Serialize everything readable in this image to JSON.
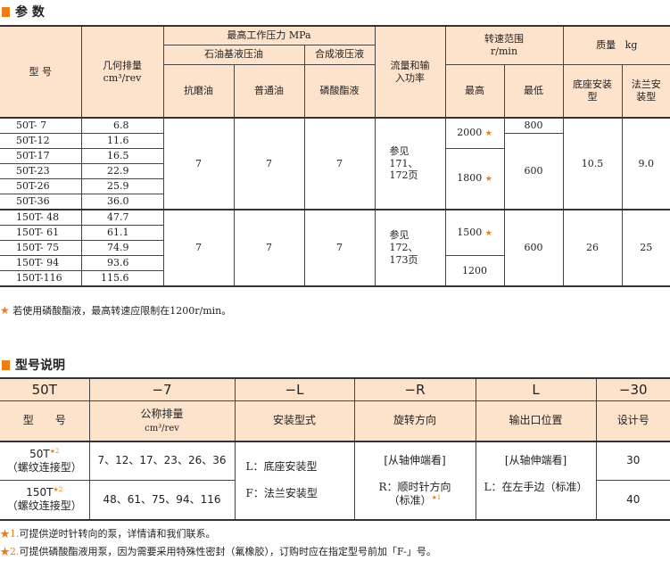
{
  "params": {
    "title": "参 数",
    "headers": {
      "model": "型 号",
      "disp": "几何排量",
      "disp_unit": "cm³/rev",
      "pressure": "最高工作压力 MPa",
      "mineral": "石油基液压油",
      "synthetic": "合成液压液",
      "antiwear": "抗磨油",
      "normal": "普通油",
      "phosphate": "磷酸酯液",
      "flow": "流量和输入功率",
      "speed": "转速范围",
      "speed_unit": "r/min",
      "max": "最高",
      "min": "最低",
      "mass": "质量",
      "mass_unit": "kg",
      "foot": "底座安装型",
      "flange": "法兰安装型"
    },
    "rows": [
      {
        "model": "50T- 7",
        "disp": "6.8"
      },
      {
        "model": "50T-12",
        "disp": "11.6"
      },
      {
        "model": "50T-17",
        "disp": "16.5"
      },
      {
        "model": "50T-23",
        "disp": "22.9"
      },
      {
        "model": "50T-26",
        "disp": "25.9"
      },
      {
        "model": "50T-36",
        "disp": "36.0"
      },
      {
        "model": "150T- 48",
        "disp": "47.7"
      },
      {
        "model": "150T- 61",
        "disp": "61.1"
      },
      {
        "model": "150T- 75",
        "disp": "74.9"
      },
      {
        "model": "150T- 94",
        "disp": "93.6"
      },
      {
        "model": "150T-116",
        "disp": "115.6"
      }
    ],
    "g1": {
      "antiwear": "7",
      "normal": "7",
      "phosphate": "7",
      "flow": "参见171、172页",
      "max_a": "2000",
      "max_b": "1800",
      "min_a": "800",
      "min_b": "600",
      "foot": "10.5",
      "flange": "9.0"
    },
    "g2": {
      "antiwear": "7",
      "normal": "7",
      "phosphate": "7",
      "flow": "参见172、173页",
      "max_a": "1500",
      "max_b": "1200",
      "min": "600",
      "foot": "26",
      "flange": "25"
    },
    "note": "若使用磷酸酯液，最高转速应限制在1200r/min。"
  },
  "model_code": {
    "title": "型号说明",
    "codes": [
      "50T",
      "−7",
      "−L",
      "−R",
      "L",
      "−30"
    ],
    "labels": [
      "型　　号",
      "公称排量",
      "安装型式",
      "旋转方向",
      "输出口位置",
      "设计号"
    ],
    "disp_unit": "cm³/rev",
    "r1": {
      "model": "50T",
      "sub": "（螺纹连接型）",
      "sizes": "7、12、17、23、26、36",
      "design": "30"
    },
    "r2": {
      "model": "150T",
      "sub": "（螺纹连接型）",
      "sizes": "48、61、75、94、116",
      "design": "40"
    },
    "mount_l": "L：底座安装型",
    "mount_f": "F：法兰安装型",
    "rot_view": "[从轴伸端看]",
    "rot_r": "R：顺时针方向",
    "rot_std": "（标准）",
    "port_view": "[从轴伸端看]",
    "port_l": "L：在左手边（标准）",
    "star1": "1.",
    "star2": "2.",
    "note1": "可提供逆时针转向的泵，详情请和我们联系。",
    "note2": "可提供磷酸酯液用泵，因为需要采用特殊性密封（氟橡胶），订购时应在指定型号前加「F-」号。"
  },
  "colors": {
    "accent": "#f07d14",
    "header_bg": "#fde2cc"
  }
}
